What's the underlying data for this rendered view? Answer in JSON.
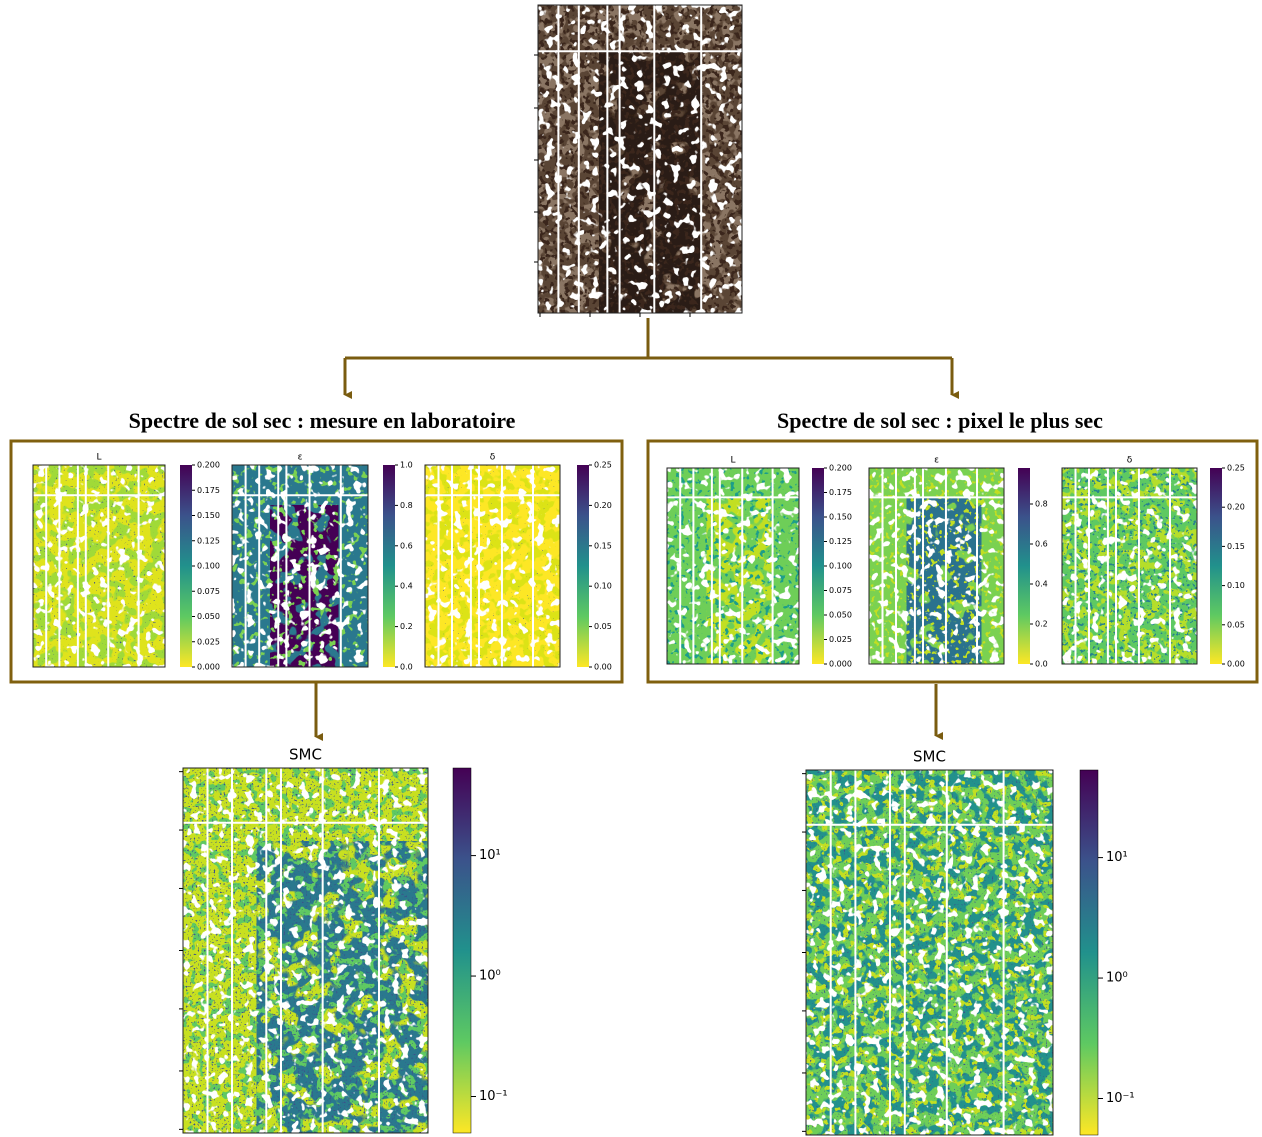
{
  "branches": [
    {
      "title": "Spectre de sol sec : mesure en laboratoire",
      "panels": [
        {
          "title": "L",
          "ticks": [
            "0.000",
            "0.025",
            "0.050",
            "0.075",
            "0.100",
            "0.125",
            "0.150",
            "0.175",
            "0.200"
          ]
        },
        {
          "title": "ε",
          "ticks": [
            "0.0",
            "0.2",
            "0.4",
            "0.6",
            "0.8",
            "1.0"
          ]
        },
        {
          "title": "δ",
          "ticks": [
            "0.00",
            "0.05",
            "0.10",
            "0.15",
            "0.20",
            "0.25"
          ]
        }
      ],
      "smc": {
        "title": "SMC",
        "ticks": [
          "10⁻¹",
          "10⁰",
          "10¹"
        ]
      }
    },
    {
      "title": "Spectre de sol sec : pixel le plus sec",
      "panels": [
        {
          "title": "L",
          "ticks": [
            "0.000",
            "0.025",
            "0.050",
            "0.075",
            "0.100",
            "0.125",
            "0.150",
            "0.175",
            "0.200"
          ]
        },
        {
          "title": "ε",
          "ticks": [
            "0.0",
            "0.2",
            "0.4",
            "0.6",
            "0.8"
          ]
        },
        {
          "title": "δ",
          "ticks": [
            "0.00",
            "0.05",
            "0.10",
            "0.15",
            "0.20",
            "0.25"
          ]
        }
      ],
      "smc": {
        "title": "SMC",
        "ticks": [
          "10⁻¹",
          "10⁰",
          "10¹"
        ]
      }
    }
  ]
}
